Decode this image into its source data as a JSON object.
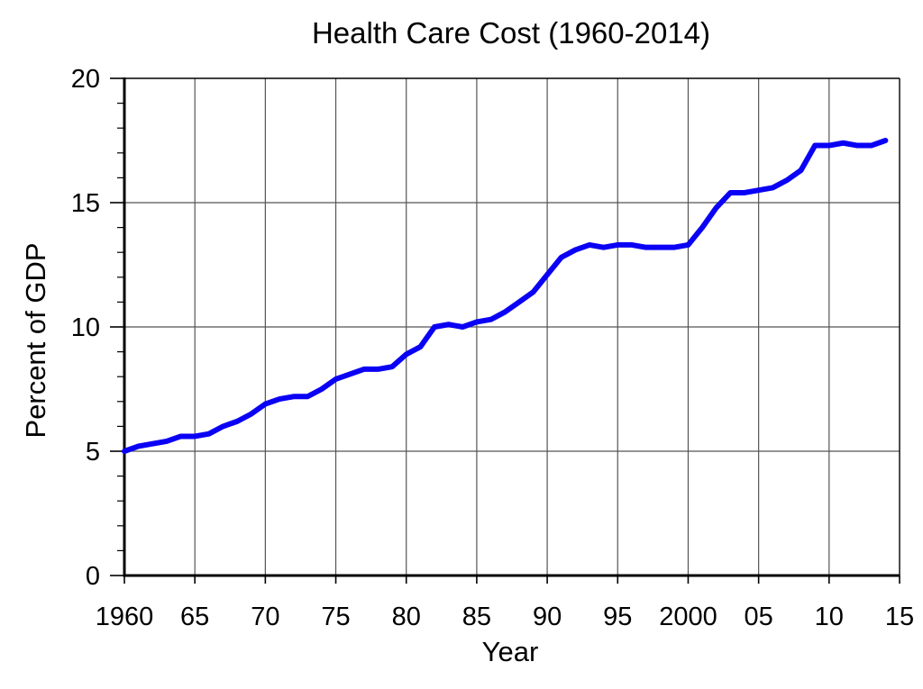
{
  "chart_data": {
    "type": "line",
    "title": "Health Care Cost (1960-2014)",
    "xlabel": "Year",
    "ylabel": "Percent of GDP",
    "xlim": [
      1960,
      2015
    ],
    "ylim": [
      0,
      20
    ],
    "x_ticks": [
      {
        "value": 1960,
        "label": "1960"
      },
      {
        "value": 1965,
        "label": "65"
      },
      {
        "value": 1970,
        "label": "70"
      },
      {
        "value": 1975,
        "label": "75"
      },
      {
        "value": 1980,
        "label": "80"
      },
      {
        "value": 1985,
        "label": "85"
      },
      {
        "value": 1990,
        "label": "90"
      },
      {
        "value": 1995,
        "label": "95"
      },
      {
        "value": 2000,
        "label": "2000"
      },
      {
        "value": 2005,
        "label": "05"
      },
      {
        "value": 2010,
        "label": "10"
      },
      {
        "value": 2015,
        "label": "15"
      }
    ],
    "y_ticks": [
      {
        "value": 0,
        "label": "0"
      },
      {
        "value": 5,
        "label": "5"
      },
      {
        "value": 10,
        "label": "10"
      },
      {
        "value": 15,
        "label": "15"
      },
      {
        "value": 20,
        "label": "20"
      }
    ],
    "y_minor_step": 1,
    "grid": true,
    "line_color": "#0a00f5",
    "series": [
      {
        "x": [
          1960,
          1961,
          1962,
          1963,
          1964,
          1965,
          1966,
          1967,
          1968,
          1969,
          1970,
          1971,
          1972,
          1973,
          1974,
          1975,
          1976,
          1977,
          1978,
          1979,
          1980,
          1981,
          1982,
          1983,
          1984,
          1985,
          1986,
          1987,
          1988,
          1989,
          1990,
          1991,
          1992,
          1993,
          1994,
          1995,
          1996,
          1997,
          1998,
          1999,
          2000,
          2001,
          2002,
          2003,
          2004,
          2005,
          2006,
          2007,
          2008,
          2009,
          2010,
          2011,
          2012,
          2013,
          2014
        ],
        "values": [
          5.0,
          5.2,
          5.3,
          5.4,
          5.6,
          5.6,
          5.7,
          6.0,
          6.2,
          6.5,
          6.9,
          7.1,
          7.2,
          7.2,
          7.5,
          7.9,
          8.1,
          8.3,
          8.3,
          8.4,
          8.9,
          9.2,
          10.0,
          10.1,
          10.0,
          10.2,
          10.3,
          10.6,
          11.0,
          11.4,
          12.1,
          12.8,
          13.1,
          13.3,
          13.2,
          13.3,
          13.3,
          13.2,
          13.2,
          13.2,
          13.3,
          14.0,
          14.8,
          15.4,
          15.4,
          15.5,
          15.6,
          15.9,
          16.3,
          17.3,
          17.3,
          17.4,
          17.3,
          17.3,
          17.5
        ]
      }
    ]
  }
}
